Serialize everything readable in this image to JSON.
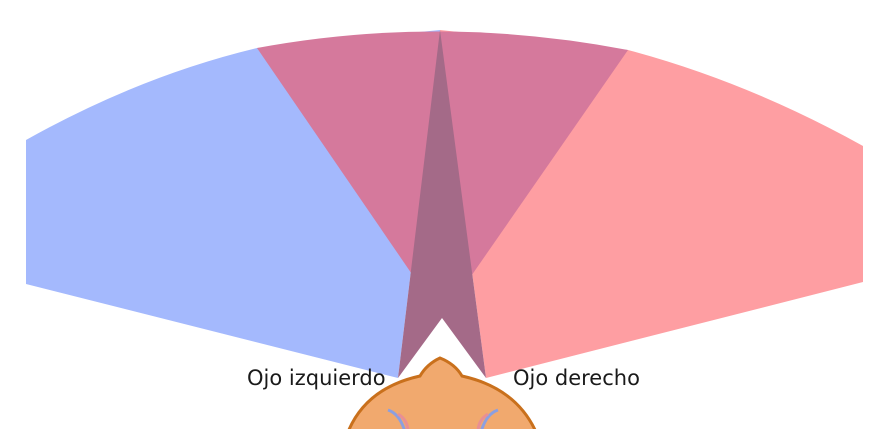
{
  "labels": {
    "left_eye": "Ojo izquierdo",
    "right_eye": "Ojo derecho"
  },
  "colors": {
    "left_field": "#a4b9fd",
    "right_field": "#fe9ea2",
    "binocular_overlap": "#d5799c",
    "central_overlap": "#a46a88",
    "head_fill": "#f1a96e",
    "head_outline": "#c9701c",
    "vein_blue": "#8c9fe0",
    "vein_red": "#e98f93"
  },
  "icons": {
    "head": "head-top-icon"
  }
}
